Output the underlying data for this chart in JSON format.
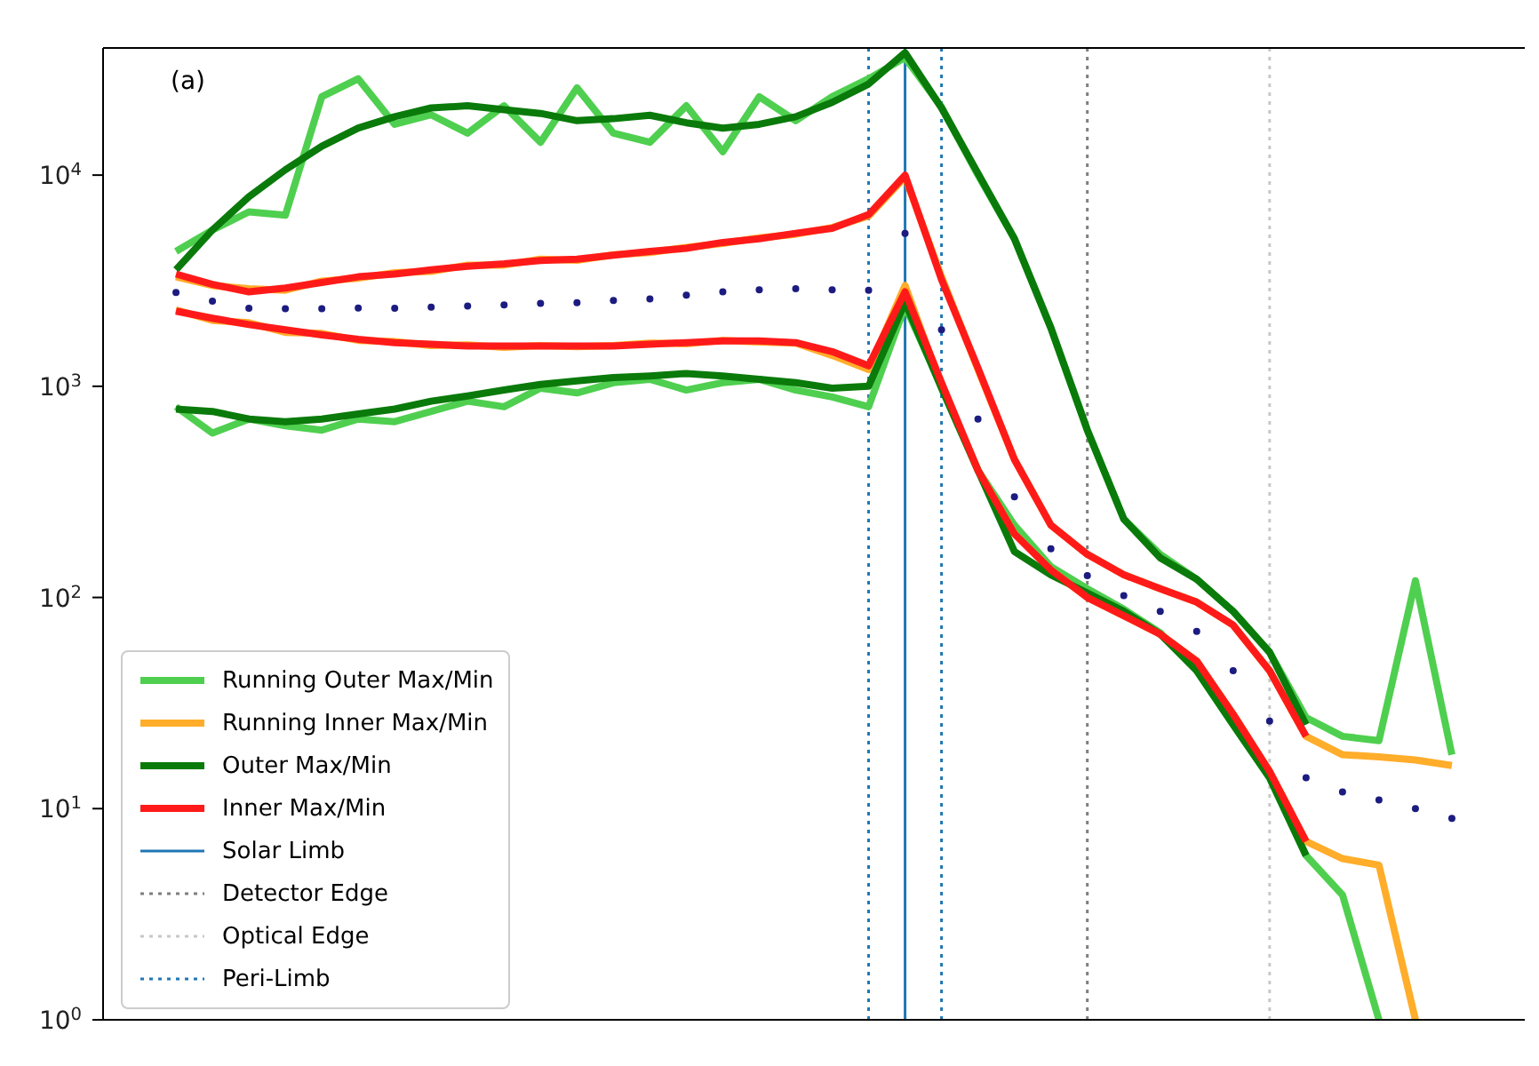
{
  "chart_data": {
    "type": "line",
    "categories": [
      null,
      null,
      null,
      null,
      null,
      null,
      null,
      null,
      null,
      null,
      null,
      null,
      null,
      null,
      null,
      null,
      null,
      null,
      null,
      null,
      null,
      null,
      null,
      null,
      null,
      null,
      null,
      null,
      null,
      null,
      null,
      null,
      null,
      null,
      null,
      null
    ],
    "log": "y",
    "ylim": [
      1,
      40000
    ],
    "yticks": [
      {
        "value": 1,
        "label": "10$^{0}$"
      },
      {
        "value": 10,
        "label": "10$^{1}$"
      },
      {
        "value": 100,
        "label": "10$^{2}$"
      },
      {
        "value": 1000,
        "label": "10$^{3}$"
      },
      {
        "value": 10000,
        "label": "10$^{4}$"
      }
    ],
    "grid": false,
    "legend": "bottom left",
    "marker": "none",
    "tick_labels": "y",
    "annotations": [
      "(a)"
    ],
    "series": [
      {
        "type": "scatter",
        "marker": "circle",
        "color": "#1c1c80",
        "values": [
          2780,
          2530,
          2340,
          2330,
          2330,
          2350,
          2340,
          2370,
          2400,
          2430,
          2470,
          2490,
          2550,
          2590,
          2700,
          2800,
          2860,
          2900,
          2860,
          2850,
          5300,
          1850,
          700,
          300,
          170,
          127,
          102,
          86,
          69,
          45,
          26,
          14,
          12,
          11,
          10,
          9
        ]
      },
      {
        "name": "Running Outer Max/Min",
        "color": "#4fcf4f",
        "values": [
          4350,
          5500,
          6700,
          6460,
          23500,
          28600,
          17400,
          19300,
          15800,
          21300,
          14300,
          25900,
          15800,
          14300,
          21300,
          12900,
          23500,
          18100,
          23500,
          28600,
          36000,
          21000,
          10000,
          5000,
          1890,
          620,
          235,
          160,
          122,
          86,
          55,
          27,
          22,
          21,
          120,
          18
        ]
      },
      {
        "color": "#4fcf4f",
        "values": [
          800,
          600,
          700,
          650,
          620,
          700,
          680,
          760,
          850,
          800,
          980,
          930,
          1040,
          1080,
          960,
          1040,
          1080,
          960,
          890,
          800,
          2400,
          1000,
          400,
          220,
          140,
          110,
          88,
          68,
          45,
          25,
          14,
          6,
          3.9,
          1,
          null,
          null
        ]
      },
      {
        "name": "Running Inner Max/Min",
        "color": "#ffad2a",
        "values": [
          3300,
          3000,
          2900,
          2850,
          3150,
          3250,
          3450,
          3500,
          3750,
          3750,
          4000,
          3950,
          4200,
          4300,
          4550,
          4750,
          5050,
          5250,
          5650,
          6400,
          9800,
          3300,
          1200,
          450,
          220,
          160,
          128,
          110,
          95,
          74,
          45,
          22,
          18,
          17.6,
          17,
          16
        ]
      },
      {
        "color": "#ffad2a",
        "values": [
          2300,
          2050,
          2000,
          1800,
          1780,
          1650,
          1630,
          1560,
          1570,
          1530,
          1560,
          1540,
          1560,
          1600,
          1590,
          1650,
          1620,
          1600,
          1400,
          1200,
          3000,
          1000,
          400,
          200,
          135,
          100,
          82,
          67,
          50,
          28,
          15,
          7,
          5.8,
          5.4,
          1,
          null
        ]
      },
      {
        "name": "Outer Max/Min",
        "color": "#0a7a0a",
        "values": [
          3560,
          5500,
          7900,
          10600,
          13700,
          16700,
          18900,
          20800,
          21300,
          20400,
          19600,
          18100,
          18500,
          19200,
          17700,
          16700,
          17400,
          18900,
          22100,
          27000,
          38000,
          20800,
          10200,
          5000,
          1890,
          620,
          235,
          154,
          122,
          86,
          55,
          25,
          null,
          null,
          null,
          null
        ]
      },
      {
        "color": "#0a7a0a",
        "values": [
          780,
          760,
          700,
          680,
          700,
          740,
          780,
          850,
          900,
          960,
          1020,
          1060,
          1100,
          1120,
          1150,
          1120,
          1080,
          1040,
          980,
          1000,
          2500,
          980,
          400,
          165,
          128,
          105,
          86,
          67,
          45,
          25,
          14,
          6,
          null,
          null,
          null,
          null
        ]
      },
      {
        "name": "Inner Max/Min",
        "color": "#ff1a1a",
        "values": [
          3400,
          3040,
          2800,
          2920,
          3100,
          3300,
          3400,
          3560,
          3700,
          3800,
          3940,
          4000,
          4180,
          4350,
          4500,
          4800,
          5000,
          5300,
          5600,
          6500,
          10000,
          3200,
          1220,
          450,
          220,
          160,
          128,
          110,
          95,
          74,
          45,
          22,
          null,
          null,
          null,
          null
        ]
      },
      {
        "color": "#ff1a1a",
        "values": [
          2270,
          2100,
          1960,
          1850,
          1750,
          1670,
          1610,
          1580,
          1550,
          1550,
          1550,
          1550,
          1550,
          1580,
          1610,
          1640,
          1640,
          1610,
          1460,
          1250,
          2800,
          1040,
          400,
          200,
          135,
          100,
          82,
          67,
          50,
          28,
          15,
          7,
          null,
          null,
          null,
          null
        ]
      }
    ],
    "ref_lines": [
      {
        "axis": "x",
        "label": "Solar Limb",
        "color": "#1f77b4",
        "line_style": "solid"
      },
      {
        "axis": "x",
        "label": "Detector Edge",
        "color": "#7f7f7f",
        "line_style": "dotted"
      },
      {
        "axis": "x",
        "label": "Optical Edge",
        "color": "#c8c8c8",
        "line_style": "dotted"
      },
      {
        "axis": "x",
        "label": "Peri-Limb",
        "color": "#1f77b4",
        "line_style": "dotted"
      },
      {
        "axis": "x",
        "color": "#1f77b4",
        "line_style": "dotted"
      }
    ]
  }
}
